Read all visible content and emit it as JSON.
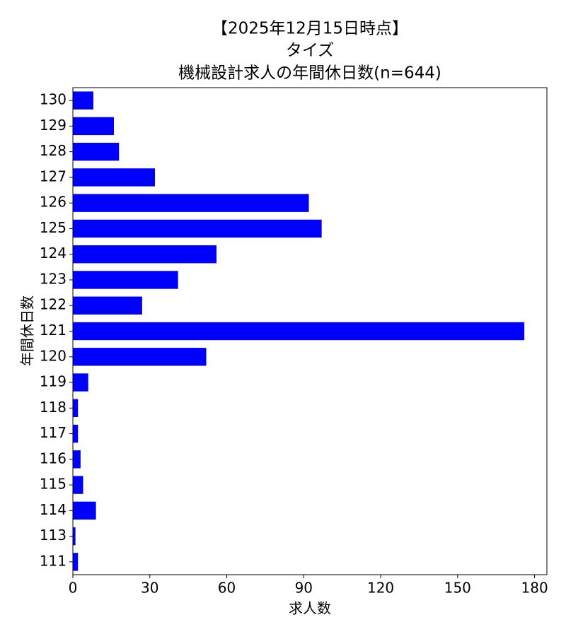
{
  "chart_data": {
    "type": "barh",
    "title": [
      "【2025年12月15日時点】",
      "タイズ",
      "機械設計求人の年間休日数(n=644)"
    ],
    "xlabel": "求人数",
    "ylabel": "年間休日数",
    "categories": [
      "130",
      "129",
      "128",
      "127",
      "126",
      "125",
      "124",
      "123",
      "122",
      "121",
      "120",
      "119",
      "118",
      "117",
      "116",
      "115",
      "114",
      "113",
      "111"
    ],
    "values": [
      8,
      16,
      18,
      32,
      92,
      97,
      56,
      41,
      27,
      176,
      52,
      6,
      2,
      2,
      3,
      4,
      9,
      1,
      2
    ],
    "color": "#0000ff",
    "xlim": [
      0,
      184.8
    ],
    "xticks": [
      0,
      30,
      60,
      90,
      120,
      150,
      180
    ]
  }
}
